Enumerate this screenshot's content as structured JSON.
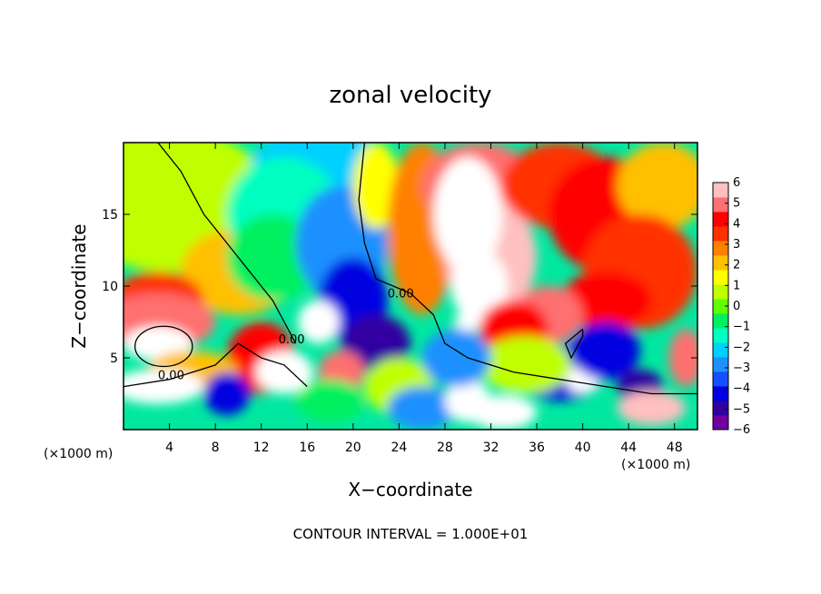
{
  "chart_data": {
    "type": "heatmap",
    "title": "zonal velocity",
    "xlabel": "X−coordinate",
    "ylabel": "Z−coordinate",
    "x_unit_left": "(×1000 m)",
    "x_unit_right": "(×1000 m)",
    "footer": "CONTOUR INTERVAL = 1.000E+01",
    "contour_label": "0.00",
    "xlim": [
      0,
      50
    ],
    "ylim": [
      0,
      20
    ],
    "x_ticks": [
      4,
      8,
      12,
      16,
      20,
      24,
      28,
      32,
      36,
      40,
      44,
      48
    ],
    "y_ticks": [
      5,
      10,
      15
    ],
    "colorbar": {
      "ticks": [
        6,
        5,
        4,
        3,
        2,
        1,
        0,
        -1,
        -2,
        -3,
        -4,
        -5,
        -6
      ],
      "tick_labels": [
        "6",
        "5",
        "4",
        "3",
        "2",
        "1",
        "0",
        "−1",
        "−2",
        "−3",
        "−4",
        "−5",
        "−6"
      ],
      "colors": [
        "#7000a0",
        "#3000a0",
        "#0000e0",
        "#1450ff",
        "#1e90ff",
        "#00d0ff",
        "#00ffc0",
        "#00f060",
        "#60ff00",
        "#c0ff00",
        "#ffff00",
        "#ffc000",
        "#ff8000",
        "#ff3000",
        "#ff0000",
        "#ff7070",
        "#ffc0c0"
      ],
      "range": [
        -6,
        6
      ],
      "overflow_high_color": "#ffffff",
      "overflow_low_color": "#ffffff"
    }
  }
}
